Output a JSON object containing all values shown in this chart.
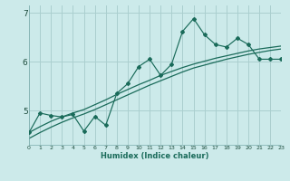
{
  "xlabel": "Humidex (Indice chaleur)",
  "ylabel": "",
  "bg_color": "#cceaea",
  "line_color": "#1a6b5a",
  "grid_color": "#aacfcf",
  "x_data": [
    0,
    1,
    2,
    3,
    4,
    5,
    6,
    7,
    8,
    9,
    10,
    11,
    12,
    13,
    14,
    15,
    16,
    17,
    18,
    19,
    20,
    21,
    22,
    23
  ],
  "y_main": [
    4.55,
    4.95,
    4.9,
    4.87,
    4.92,
    4.58,
    4.88,
    4.7,
    5.35,
    5.55,
    5.9,
    6.05,
    5.72,
    5.95,
    6.62,
    6.88,
    6.55,
    6.35,
    6.3,
    6.48,
    6.35,
    6.05,
    6.05,
    6.05
  ],
  "y_trend1": [
    4.55,
    4.67,
    4.78,
    4.87,
    4.95,
    5.02,
    5.12,
    5.22,
    5.33,
    5.43,
    5.53,
    5.62,
    5.72,
    5.8,
    5.88,
    5.95,
    6.01,
    6.07,
    6.12,
    6.17,
    6.22,
    6.26,
    6.29,
    6.32
  ],
  "y_trend2": [
    4.43,
    4.55,
    4.66,
    4.76,
    4.85,
    4.93,
    5.02,
    5.12,
    5.22,
    5.32,
    5.42,
    5.52,
    5.61,
    5.7,
    5.79,
    5.87,
    5.93,
    5.99,
    6.05,
    6.1,
    6.15,
    6.19,
    6.23,
    6.26
  ],
  "ylim": [
    4.3,
    7.15
  ],
  "yticks": [
    5,
    6,
    7
  ],
  "ytick_labels": [
    "5",
    "6",
    "7"
  ],
  "xlim": [
    0,
    23
  ],
  "xtick_labels": [
    "0",
    "1",
    "2",
    "3",
    "4",
    "5",
    "6",
    "7",
    "8",
    "9",
    "10",
    "11",
    "12",
    "13",
    "14",
    "15",
    "16",
    "17",
    "18",
    "19",
    "20",
    "21",
    "22",
    "23"
  ]
}
